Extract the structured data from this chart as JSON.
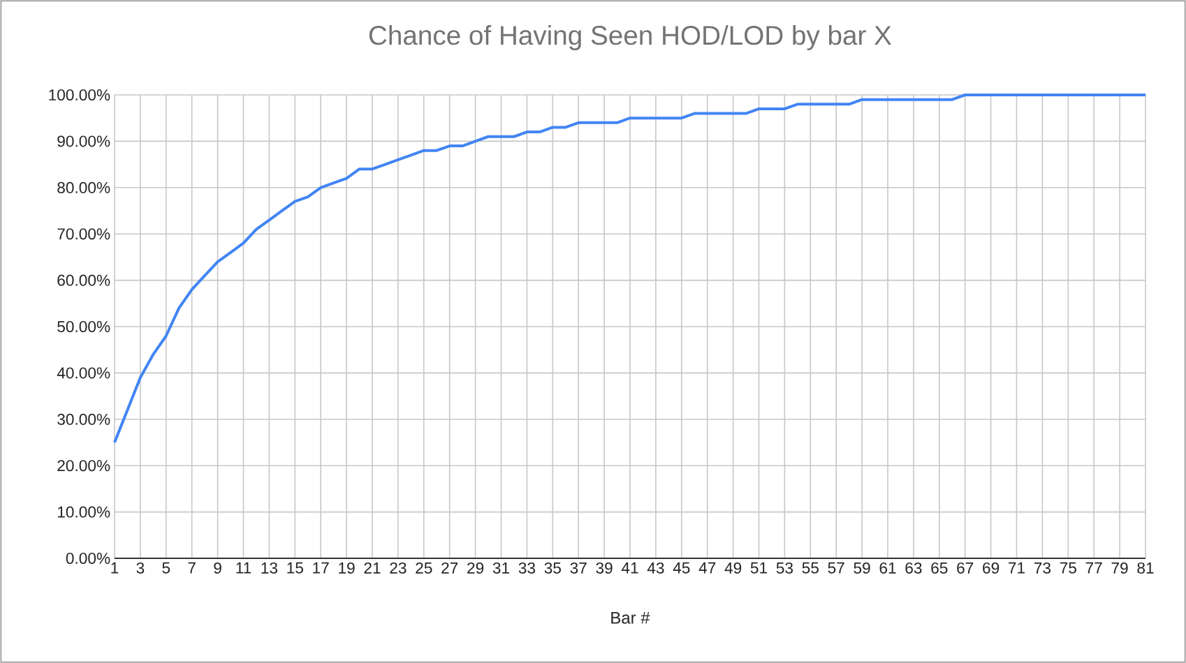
{
  "chart_data": {
    "type": "line",
    "title": "Chance of Having Seen HOD/LOD by bar X",
    "xlabel": "Bar #",
    "x": [
      1,
      2,
      3,
      4,
      5,
      6,
      7,
      8,
      9,
      10,
      11,
      12,
      13,
      14,
      15,
      16,
      17,
      18,
      19,
      20,
      21,
      22,
      23,
      24,
      25,
      26,
      27,
      28,
      29,
      30,
      31,
      32,
      33,
      34,
      35,
      36,
      37,
      38,
      39,
      40,
      41,
      42,
      43,
      44,
      45,
      46,
      47,
      48,
      49,
      50,
      51,
      52,
      53,
      54,
      55,
      56,
      57,
      58,
      59,
      60,
      61,
      62,
      63,
      64,
      65,
      66,
      67,
      68,
      69,
      70,
      71,
      72,
      73,
      74,
      75,
      76,
      77,
      78,
      79,
      80,
      81
    ],
    "series": [
      {
        "color": "#4285f4",
        "values": [
          25,
          32,
          39,
          44,
          48,
          54,
          58,
          61,
          64,
          66,
          68,
          71,
          73,
          75,
          77,
          78,
          80,
          81,
          82,
          84,
          84,
          85,
          86,
          87,
          88,
          88,
          89,
          89,
          90,
          91,
          91,
          91,
          92,
          92,
          93,
          93,
          94,
          94,
          94,
          94,
          95,
          95,
          95,
          95,
          95,
          96,
          96,
          96,
          96,
          96,
          97,
          97,
          97,
          98,
          98,
          98,
          98,
          98,
          99,
          99,
          99,
          99,
          99,
          99,
          99,
          99,
          100,
          100,
          100,
          100,
          100,
          100,
          100,
          100,
          100,
          100,
          100,
          100,
          100,
          100,
          100
        ]
      }
    ],
    "xlim": [
      1,
      81
    ],
    "xticks": [
      1,
      3,
      5,
      7,
      9,
      11,
      13,
      15,
      17,
      19,
      21,
      23,
      25,
      27,
      29,
      31,
      33,
      35,
      37,
      39,
      41,
      43,
      45,
      47,
      49,
      51,
      53,
      55,
      57,
      59,
      61,
      63,
      65,
      67,
      69,
      71,
      73,
      75,
      77,
      79,
      81
    ],
    "ylim": [
      0,
      100
    ],
    "yticks": [
      {
        "value": 0,
        "label": "0.00%"
      },
      {
        "value": 10,
        "label": "10.00%"
      },
      {
        "value": 20,
        "label": "20.00%"
      },
      {
        "value": 30,
        "label": "30.00%"
      },
      {
        "value": 40,
        "label": "40.00%"
      },
      {
        "value": 50,
        "label": "50.00%"
      },
      {
        "value": 60,
        "label": "60.00%"
      },
      {
        "value": 70,
        "label": "70.00%"
      },
      {
        "value": 80,
        "label": "80.00%"
      },
      {
        "value": 90,
        "label": "90.00%"
      },
      {
        "value": 100,
        "label": "100.00%"
      }
    ],
    "grid": true,
    "marker": "none",
    "line_style": "solid"
  }
}
